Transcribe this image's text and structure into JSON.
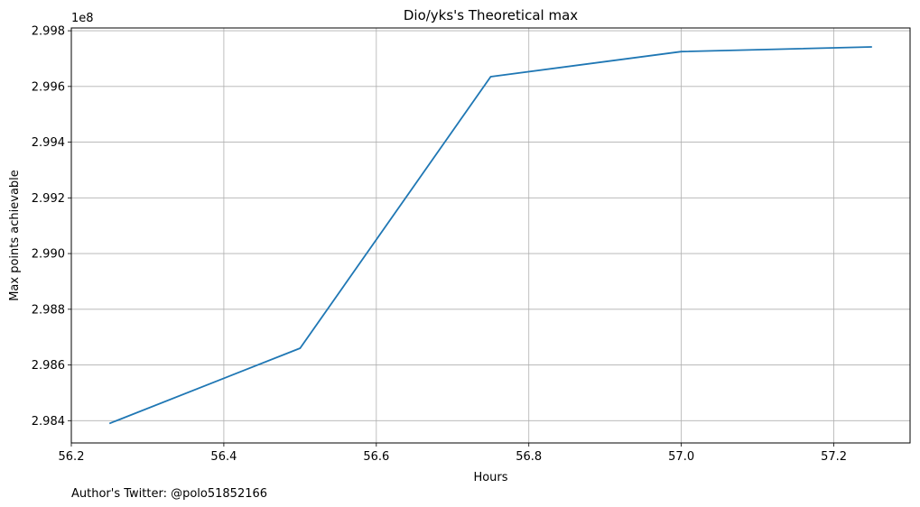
{
  "chart_data": {
    "type": "line",
    "title": "Dio/yks's Theoretical max",
    "xlabel": "Hours",
    "ylabel": "Max points achievable",
    "y_offset_label": "1e8",
    "xlim": [
      56.2,
      57.3
    ],
    "ylim": [
      2.9832,
      2.9981
    ],
    "x_ticks": [
      56.2,
      56.4,
      56.6,
      56.8,
      57.0,
      57.2
    ],
    "x_tick_labels": [
      "56.2",
      "56.4",
      "56.6",
      "56.8",
      "57.0",
      "57.2"
    ],
    "y_ticks": [
      2.984,
      2.986,
      2.988,
      2.99,
      2.992,
      2.994,
      2.996,
      2.998
    ],
    "y_tick_labels": [
      "2.984",
      "2.986",
      "2.988",
      "2.990",
      "2.992",
      "2.994",
      "2.996",
      "2.998"
    ],
    "grid": true,
    "series": [
      {
        "x": [
          56.25,
          56.5,
          56.75,
          57.0,
          57.25
        ],
        "y": [
          2.9839,
          2.9866,
          2.99635,
          2.99725,
          2.99742
        ],
        "color": "#1f77b4"
      }
    ]
  },
  "footer": {
    "text": "Author's Twitter: @polo51852166"
  }
}
